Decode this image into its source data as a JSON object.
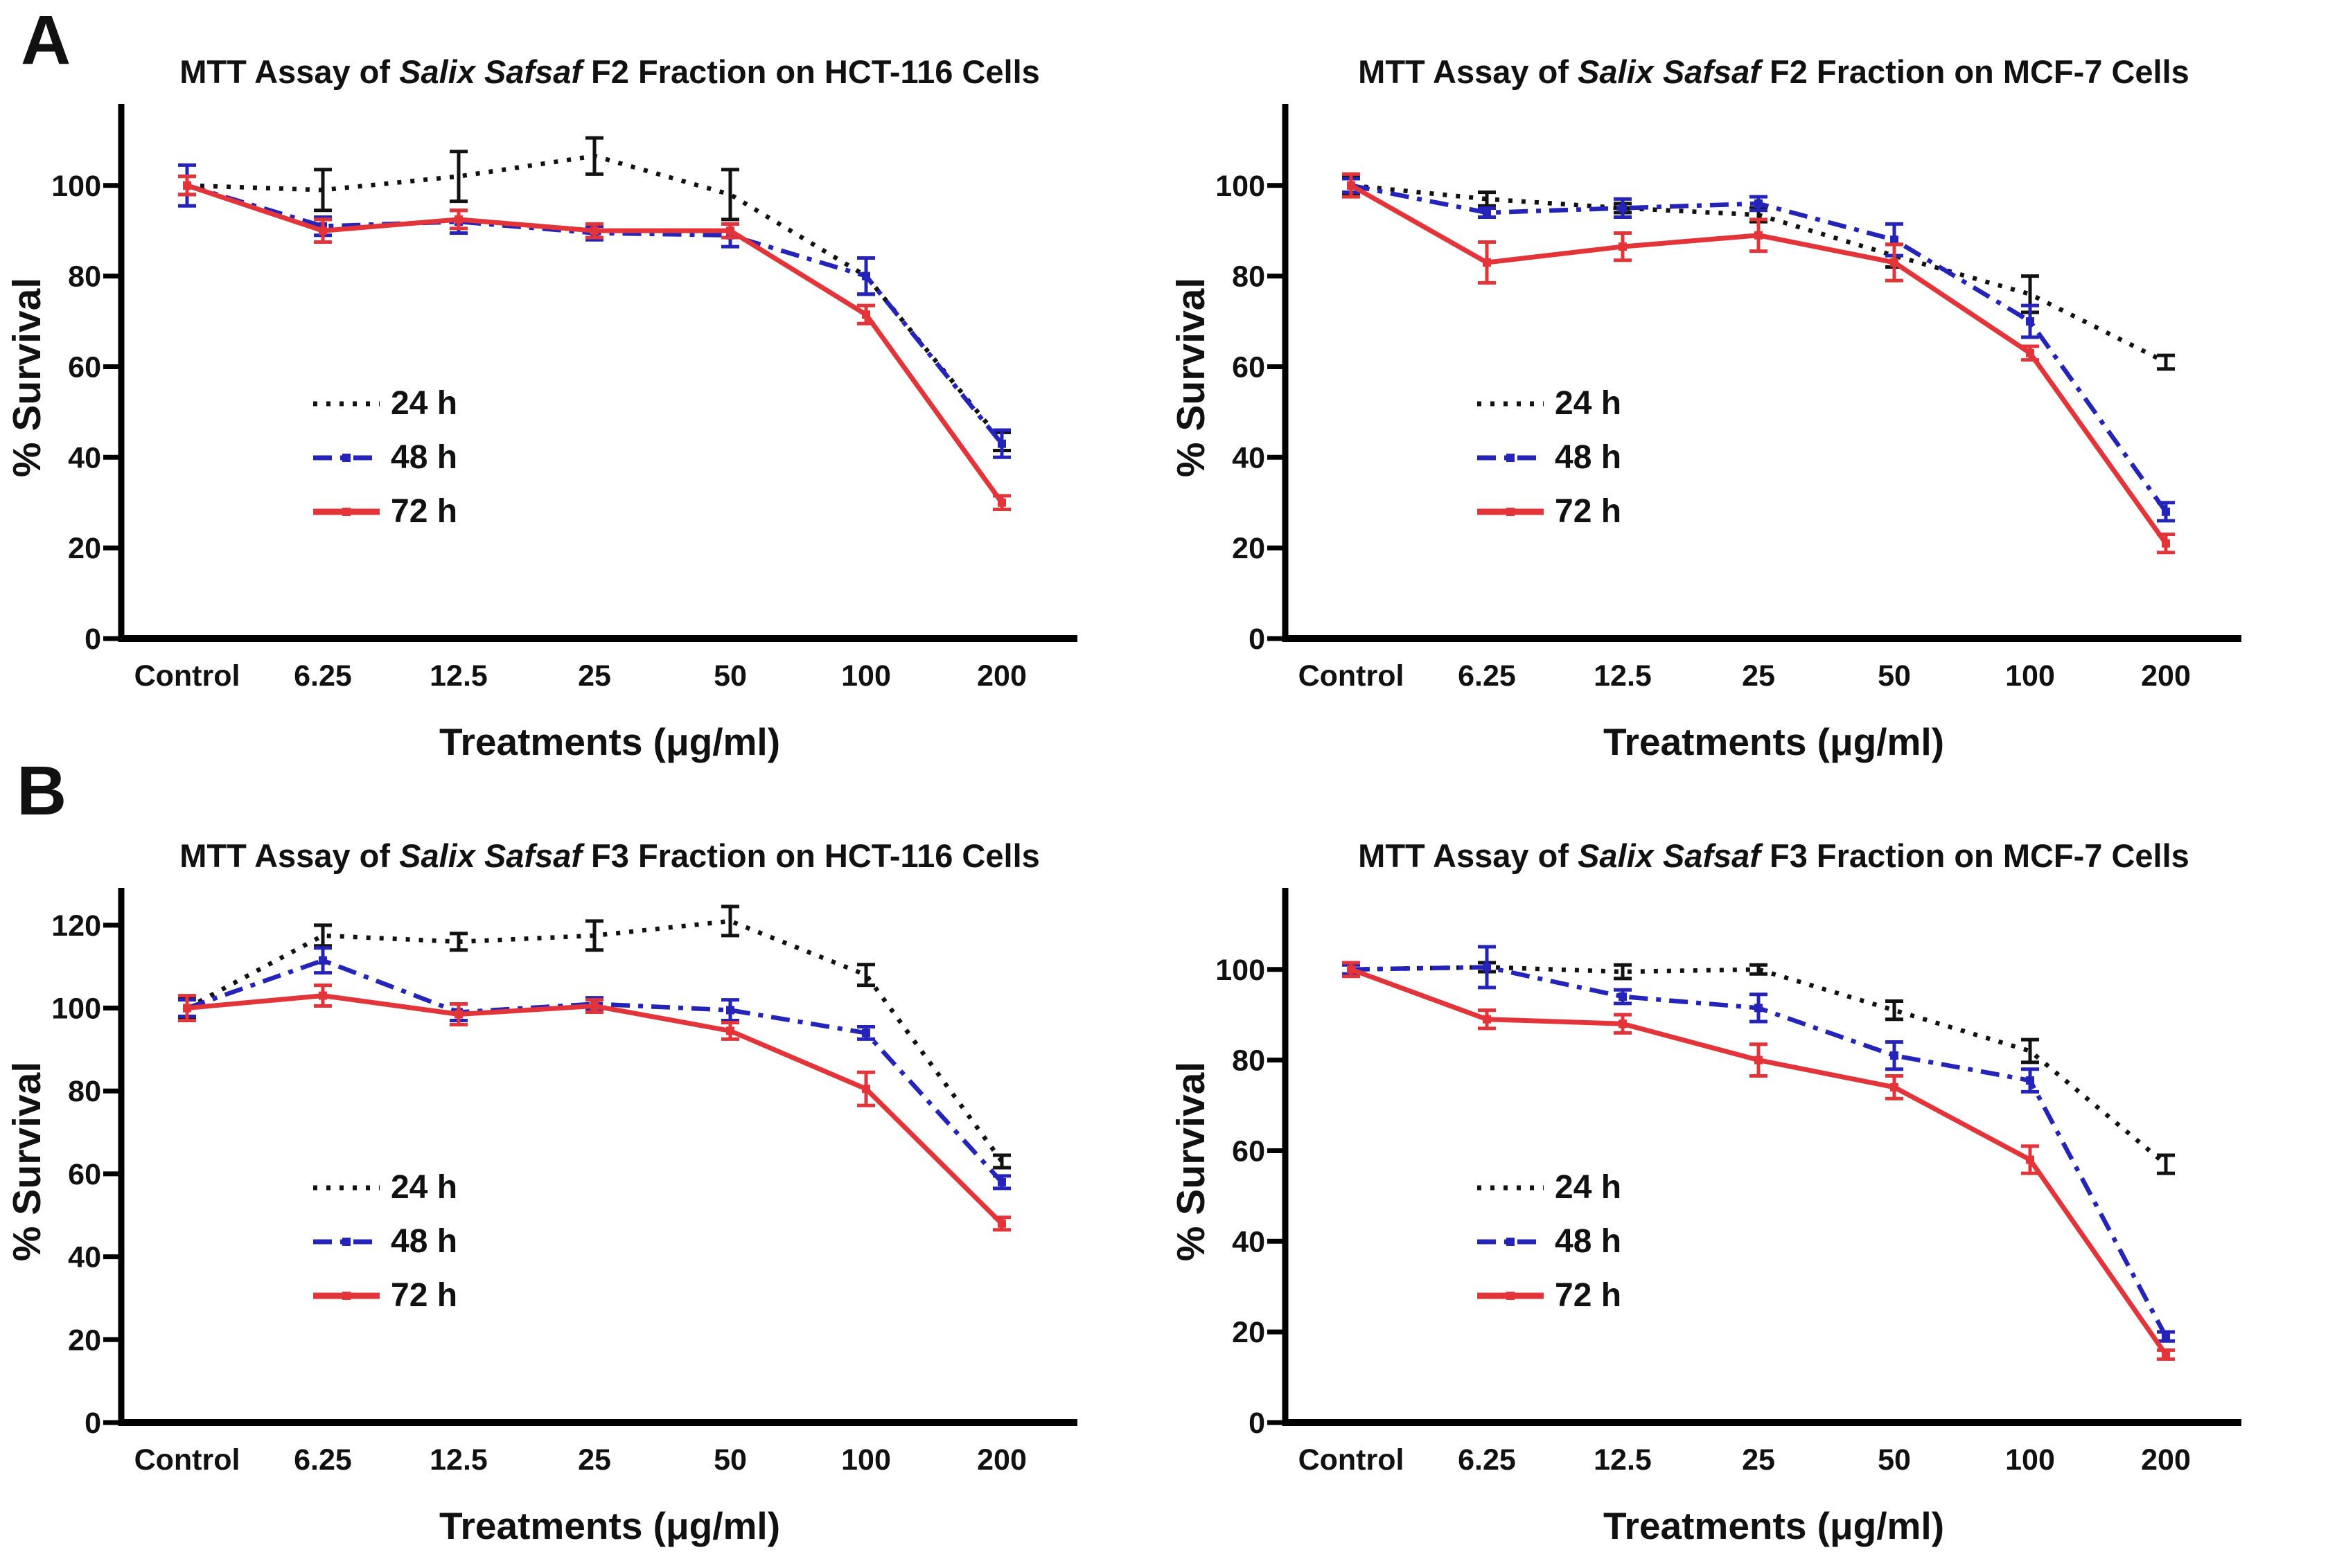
{
  "panels": {
    "a": "A",
    "b": "B"
  },
  "colors": {
    "h24": "#121212",
    "h48": "#2424bb",
    "h72": "#e33439",
    "axis": "#000000"
  },
  "chart_data": [
    {
      "id": "f2-hct116",
      "type": "line",
      "title_parts": {
        "pre": "MTT Assay of ",
        "italic": "Salix Safsaf",
        "post": " F2 Fraction on HCT-116 Cells"
      },
      "title": "MTT Assay of Salix Safsaf F2 Fraction on HCT-116 Cells",
      "xlabel": "Treatments (μg/ml)",
      "ylabel": "% Survival",
      "categories": [
        "Control",
        "6.25",
        "12.5",
        "25",
        "50",
        "100",
        "200"
      ],
      "yticks": [
        0,
        20,
        40,
        60,
        80,
        100
      ],
      "ylim": [
        0,
        118
      ],
      "grid": false,
      "legend_position": "left-center",
      "series": [
        {
          "name": "24 h",
          "style": "dotted",
          "color": "#121212",
          "values": [
            100,
            99,
            102,
            106.5,
            98,
            80,
            43.5
          ],
          "errors": [
            2,
            4.5,
            5.5,
            4,
            5.5,
            4,
            2
          ]
        },
        {
          "name": "48 h",
          "style": "dash-dot",
          "color": "#2424bb",
          "values": [
            100,
            91,
            92,
            89.5,
            89,
            80,
            43
          ],
          "errors": [
            4.5,
            2,
            2.5,
            1.5,
            2.5,
            4,
            3
          ]
        },
        {
          "name": "72 h",
          "style": "solid",
          "color": "#e33439",
          "values": [
            100,
            90,
            92.5,
            90,
            90,
            71.5,
            30
          ],
          "errors": [
            2,
            2.5,
            2,
            1.5,
            1.5,
            2,
            1.5
          ]
        }
      ]
    },
    {
      "id": "f2-mcf7",
      "type": "line",
      "title_parts": {
        "pre": "MTT Assay of ",
        "italic": "Salix Safsaf",
        "post": " F2 Fraction on MCF-7 Cells"
      },
      "title": "MTT Assay of Salix Safsaf F2 Fraction on MCF-7 Cells",
      "xlabel": "Treatments (μg/ml)",
      "ylabel": "% Survival",
      "categories": [
        "Control",
        "6.25",
        "12.5",
        "25",
        "50",
        "100",
        "200"
      ],
      "yticks": [
        0,
        20,
        40,
        60,
        80,
        100
      ],
      "ylim": [
        0,
        118
      ],
      "grid": false,
      "legend_position": "left-center",
      "series": [
        {
          "name": "24 h",
          "style": "dotted",
          "color": "#121212",
          "values": [
            100,
            97,
            95,
            93.5,
            84.5,
            76,
            61
          ],
          "errors": [
            2,
            1.5,
            1,
            1.5,
            2.5,
            4,
            1.5
          ]
        },
        {
          "name": "48 h",
          "style": "dash-dot",
          "color": "#2424bb",
          "values": [
            100,
            94,
            95,
            96,
            88,
            70,
            28
          ],
          "errors": [
            1.5,
            1,
            2,
            1.5,
            3.5,
            3.5,
            2
          ]
        },
        {
          "name": "72 h",
          "style": "solid",
          "color": "#e33439",
          "values": [
            100,
            83,
            86.5,
            89,
            83,
            63,
            21
          ],
          "errors": [
            2.5,
            4.5,
            3,
            3.5,
            4,
            1.5,
            2
          ]
        }
      ]
    },
    {
      "id": "f3-hct116",
      "type": "line",
      "title_parts": {
        "pre": "MTT Assay of ",
        "italic": "Salix Safsaf",
        "post": " F3 Fraction on HCT-116 Cells"
      },
      "title": "MTT Assay of Salix Safsaf F3 Fraction on HCT-116 Cells",
      "xlabel": "Treatments (μg/ml)",
      "ylabel": "% Survival",
      "categories": [
        "Control",
        "6.25",
        "12.5",
        "25",
        "50",
        "100",
        "200"
      ],
      "yticks": [
        0,
        20,
        40,
        60,
        80,
        100,
        120
      ],
      "ylim": [
        0,
        129
      ],
      "grid": false,
      "legend_position": "left-center",
      "series": [
        {
          "name": "24 h",
          "style": "dotted",
          "color": "#121212",
          "values": [
            100,
            117.5,
            116,
            117.5,
            121,
            108,
            63
          ],
          "errors": [
            2.5,
            2.5,
            2,
            3.5,
            3.5,
            2.5,
            1.5
          ]
        },
        {
          "name": "48 h",
          "style": "dash-dot",
          "color": "#2424bb",
          "values": [
            100,
            111.5,
            99,
            101,
            99.5,
            94,
            58
          ],
          "errors": [
            2,
            3,
            2,
            1.5,
            2.5,
            1.5,
            1.5
          ]
        },
        {
          "name": "72 h",
          "style": "solid",
          "color": "#e33439",
          "values": [
            100,
            103,
            98.5,
            100.5,
            94.5,
            80.5,
            48
          ],
          "errors": [
            3,
            2.5,
            2.5,
            1.5,
            2,
            4,
            1.5
          ]
        }
      ]
    },
    {
      "id": "f3-mcf7",
      "type": "line",
      "title_parts": {
        "pre": "MTT Assay of ",
        "italic": "Salix Safsaf",
        "post": " F3 Fraction on MCF-7 Cells"
      },
      "title": "MTT Assay of Salix Safsaf F3 Fraction on MCF-7 Cells",
      "xlabel": "Treatments (μg/ml)",
      "ylabel": "% Survival",
      "categories": [
        "Control",
        "6.25",
        "12.5",
        "25",
        "50",
        "100",
        "200"
      ],
      "yticks": [
        0,
        20,
        40,
        60,
        80,
        100
      ],
      "ylim": [
        0,
        118
      ],
      "grid": false,
      "legend_position": "left-center",
      "series": [
        {
          "name": "24 h",
          "style": "dotted",
          "color": "#121212",
          "values": [
            100,
            100.5,
            99.5,
            100,
            91,
            82,
            57
          ],
          "errors": [
            1.5,
            1,
            1.5,
            1,
            2,
            2.5,
            2
          ]
        },
        {
          "name": "48 h",
          "style": "dash-dot",
          "color": "#2424bb",
          "values": [
            100,
            100.5,
            94,
            91.5,
            81,
            75.5,
            19
          ],
          "errors": [
            1,
            4.5,
            1.5,
            3,
            3,
            2.5,
            1
          ]
        },
        {
          "name": "72 h",
          "style": "solid",
          "color": "#e33439",
          "values": [
            100,
            89,
            88,
            80,
            74,
            58,
            15
          ],
          "errors": [
            1.5,
            2,
            2,
            3.5,
            2.5,
            3,
            1
          ]
        }
      ]
    }
  ]
}
